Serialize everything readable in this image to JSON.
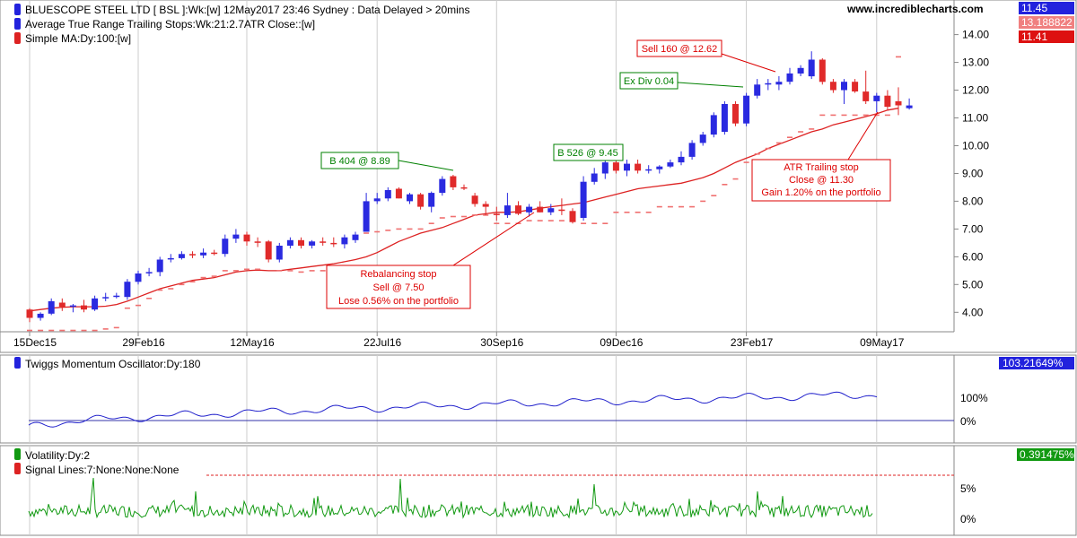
{
  "site": "www.incrediblecharts.com",
  "price_panel": {
    "title": "BLUESCOPE STEEL LTD [ BSL ]:Wk:[w]  12May2017 23:46 Sydney : Data Delayed > 20mins",
    "legend2": "Average True Range Trailing Stops:Wk:21:2.7ATR Close::[w]",
    "legend3": "Simple MA:Dy:100:[w]",
    "value_boxes": [
      {
        "text": "11.45",
        "color": "#2222dd"
      },
      {
        "text": "13.188822",
        "color": "#f08080"
      },
      {
        "text": "11.41",
        "color": "#dd1111"
      }
    ]
  },
  "momentum_panel": {
    "title": "Twiggs Momentum Oscillator:Dy:180",
    "value_box": "103.21649%",
    "value_color": "#2222dd",
    "ticks": [
      "100%",
      "0%"
    ]
  },
  "volatility_panel": {
    "title": "Volatility:Dy:2",
    "legend2": "Signal Lines:7:None:None:None",
    "value_box": "0.391475%",
    "value_color": "#119911",
    "ticks": [
      "5%",
      "0%"
    ]
  },
  "annotations": [
    {
      "id": "b404",
      "text": "B 404 @ 8.89",
      "color": "#008000"
    },
    {
      "id": "b526",
      "text": "B 526 @ 9.45",
      "color": "#008000"
    },
    {
      "id": "exdiv",
      "text": "Ex Div 0.04",
      "color": "#008000"
    },
    {
      "id": "sell160",
      "text": "Sell 160 @ 12.62",
      "color": "#dd0000"
    },
    {
      "id": "rebal",
      "lines": [
        "Rebalancing stop",
        "Sell @ 7.50",
        "Lose 0.56% on the portfolio"
      ],
      "color": "#dd0000"
    },
    {
      "id": "atr",
      "lines": [
        "ATR Trailing stop",
        "Close @ 11.30",
        "Gain 1.20% on the portfolio"
      ],
      "color": "#dd0000"
    }
  ],
  "chart_data": {
    "type": "candlestick",
    "x_ticks": [
      "15Dec15",
      "29Feb16",
      "12May16",
      "22Jul16",
      "30Sep16",
      "09Dec16",
      "23Feb17",
      "09May17"
    ],
    "y_ticks": [
      4.0,
      5.0,
      6.0,
      7.0,
      8.0,
      9.0,
      10.0,
      11.0,
      12.0,
      13.0,
      14.0
    ],
    "ylim": [
      3.3,
      14.6
    ],
    "candles": [
      [
        4.1,
        4.15,
        3.65,
        3.8
      ],
      [
        3.8,
        4.0,
        3.7,
        3.95
      ],
      [
        3.95,
        4.5,
        3.9,
        4.4
      ],
      [
        4.35,
        4.5,
        4.05,
        4.2
      ],
      [
        4.2,
        4.3,
        4.0,
        4.25
      ],
      [
        4.25,
        4.45,
        4.0,
        4.1
      ],
      [
        4.1,
        4.6,
        4.05,
        4.5
      ],
      [
        4.5,
        4.7,
        4.4,
        4.55
      ],
      [
        4.55,
        4.7,
        4.5,
        4.6
      ],
      [
        4.55,
        5.2,
        4.45,
        5.1
      ],
      [
        5.1,
        5.5,
        5.0,
        5.4
      ],
      [
        5.4,
        5.6,
        5.3,
        5.45
      ],
      [
        5.45,
        6.0,
        5.3,
        5.9
      ],
      [
        5.9,
        6.1,
        5.8,
        5.95
      ],
      [
        5.95,
        6.2,
        5.9,
        6.1
      ],
      [
        6.1,
        6.2,
        5.95,
        6.05
      ],
      [
        6.05,
        6.3,
        5.95,
        6.15
      ],
      [
        6.15,
        6.25,
        6.05,
        6.1
      ],
      [
        6.1,
        6.8,
        6.0,
        6.65
      ],
      [
        6.65,
        7.0,
        6.5,
        6.8
      ],
      [
        6.8,
        6.9,
        6.4,
        6.55
      ],
      [
        6.55,
        6.7,
        6.35,
        6.5
      ],
      [
        6.55,
        6.6,
        5.8,
        5.9
      ],
      [
        5.9,
        6.5,
        5.8,
        6.4
      ],
      [
        6.4,
        6.7,
        6.3,
        6.6
      ],
      [
        6.6,
        6.7,
        6.3,
        6.4
      ],
      [
        6.4,
        6.6,
        6.3,
        6.55
      ],
      [
        6.55,
        6.7,
        6.4,
        6.5
      ],
      [
        6.5,
        6.7,
        6.35,
        6.45
      ],
      [
        6.45,
        6.8,
        6.3,
        6.7
      ],
      [
        6.6,
        6.9,
        6.5,
        6.8
      ],
      [
        6.9,
        8.3,
        6.9,
        8.0
      ],
      [
        8.0,
        8.3,
        7.9,
        8.1
      ],
      [
        8.1,
        8.5,
        8.0,
        8.4
      ],
      [
        8.45,
        8.5,
        8.1,
        8.1
      ],
      [
        8.0,
        8.3,
        7.9,
        8.25
      ],
      [
        8.25,
        8.3,
        7.7,
        7.8
      ],
      [
        7.8,
        8.35,
        7.6,
        8.3
      ],
      [
        8.3,
        8.9,
        8.2,
        8.8
      ],
      [
        8.9,
        8.95,
        8.4,
        8.5
      ],
      [
        8.5,
        8.6,
        8.4,
        8.45
      ],
      [
        8.2,
        8.3,
        7.8,
        7.9
      ],
      [
        7.9,
        8.0,
        7.5,
        7.8
      ],
      [
        7.55,
        7.8,
        7.3,
        7.5
      ],
      [
        7.5,
        8.3,
        7.4,
        7.85
      ],
      [
        7.85,
        8.0,
        7.5,
        7.55
      ],
      [
        7.6,
        7.9,
        7.45,
        7.8
      ],
      [
        7.8,
        8.0,
        7.6,
        7.6
      ],
      [
        7.6,
        7.9,
        7.5,
        7.75
      ],
      [
        7.7,
        8.1,
        7.5,
        7.65
      ],
      [
        7.65,
        7.75,
        7.2,
        7.25
      ],
      [
        7.4,
        8.9,
        7.3,
        8.7
      ],
      [
        8.7,
        9.2,
        8.6,
        9.0
      ],
      [
        9.0,
        9.5,
        8.8,
        9.4
      ],
      [
        9.4,
        9.5,
        9.0,
        9.1
      ],
      [
        9.1,
        9.5,
        8.9,
        9.35
      ],
      [
        9.35,
        9.5,
        9.0,
        9.1
      ],
      [
        9.1,
        9.3,
        9.0,
        9.15
      ],
      [
        9.15,
        9.3,
        9.0,
        9.25
      ],
      [
        9.25,
        9.5,
        9.2,
        9.4
      ],
      [
        9.4,
        9.8,
        9.3,
        9.6
      ],
      [
        9.6,
        10.2,
        9.5,
        10.1
      ],
      [
        10.1,
        10.5,
        10.0,
        10.4
      ],
      [
        10.4,
        11.2,
        10.3,
        11.1
      ],
      [
        10.5,
        11.6,
        10.4,
        11.5
      ],
      [
        11.5,
        11.6,
        10.7,
        10.8
      ],
      [
        10.8,
        11.9,
        10.7,
        11.8
      ],
      [
        11.8,
        12.4,
        11.7,
        12.2
      ],
      [
        12.2,
        12.4,
        12.0,
        12.25
      ],
      [
        12.2,
        12.5,
        12.0,
        12.3
      ],
      [
        12.3,
        12.8,
        12.2,
        12.6
      ],
      [
        12.6,
        12.9,
        12.5,
        12.8
      ],
      [
        12.5,
        13.4,
        12.4,
        13.1
      ],
      [
        13.1,
        13.15,
        12.2,
        12.3
      ],
      [
        12.3,
        12.4,
        11.9,
        12.0
      ],
      [
        12.0,
        12.4,
        11.5,
        12.3
      ],
      [
        12.3,
        12.4,
        11.9,
        11.95
      ],
      [
        11.95,
        12.7,
        11.5,
        11.6
      ],
      [
        11.6,
        11.9,
        11.2,
        11.8
      ],
      [
        11.8,
        12.0,
        11.3,
        11.4
      ],
      [
        11.6,
        12.1,
        11.1,
        11.45
      ],
      [
        11.35,
        11.7,
        11.3,
        11.45
      ]
    ],
    "sma": [
      4.05,
      4.1,
      4.15,
      4.18,
      4.2,
      4.2,
      4.2,
      4.22,
      4.28,
      4.4,
      4.55,
      4.7,
      4.85,
      4.95,
      5.05,
      5.15,
      5.2,
      5.25,
      5.35,
      5.45,
      5.5,
      5.52,
      5.5,
      5.5,
      5.55,
      5.6,
      5.65,
      5.7,
      5.75,
      5.82,
      5.9,
      6.0,
      6.15,
      6.35,
      6.55,
      6.7,
      6.85,
      6.95,
      7.05,
      7.2,
      7.35,
      7.5,
      7.55,
      7.6,
      7.6,
      7.62,
      7.68,
      7.75,
      7.8,
      7.85,
      7.9,
      7.95,
      8.05,
      8.15,
      8.25,
      8.35,
      8.45,
      8.5,
      8.55,
      8.6,
      8.65,
      8.75,
      8.85,
      9.0,
      9.2,
      9.4,
      9.55,
      9.7,
      9.9,
      10.05,
      10.2,
      10.35,
      10.5,
      10.6,
      10.75,
      10.85,
      10.95,
      11.05,
      11.15,
      11.28,
      11.35
    ],
    "atr_stops": [
      3.35,
      3.35,
      3.35,
      3.35,
      3.35,
      3.35,
      3.35,
      3.4,
      3.45,
      4.15,
      4.25,
      4.5,
      4.8,
      4.85,
      5.0,
      5.1,
      5.25,
      5.3,
      5.5,
      5.5,
      5.55,
      5.55,
      null,
      5.5,
      5.5,
      5.45,
      5.5,
      5.5,
      5.5,
      5.5,
      5.5,
      6.85,
      6.9,
      6.95,
      7.0,
      7.0,
      7.0,
      7.2,
      7.4,
      7.45,
      7.45,
      7.5,
      7.5,
      7.2,
      7.2,
      7.2,
      7.3,
      7.3,
      7.3,
      7.3,
      7.3,
      7.2,
      7.2,
      7.2,
      7.6,
      7.6,
      7.6,
      7.6,
      7.8,
      7.8,
      7.8,
      7.8,
      8.0,
      8.2,
      8.6,
      8.8,
      9.4,
      9.7,
      9.9,
      10.1,
      10.3,
      10.5,
      10.6,
      11.1,
      11.1,
      11.1,
      11.1,
      11.1,
      11.1,
      11.1,
      13.2
    ]
  }
}
